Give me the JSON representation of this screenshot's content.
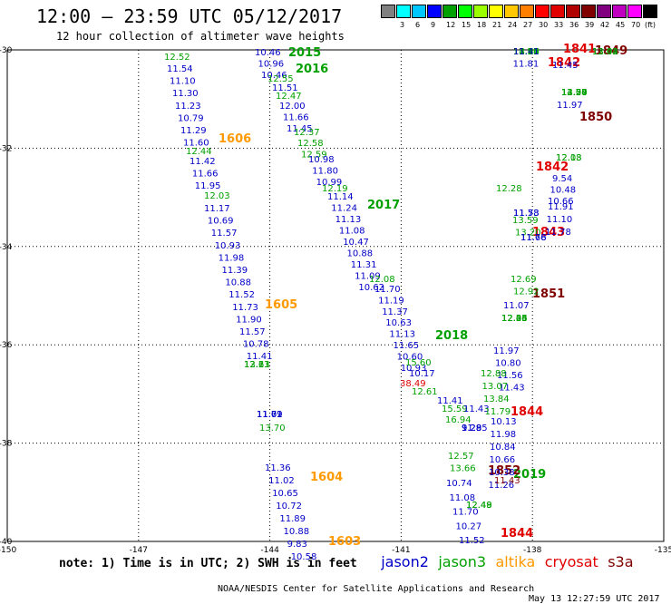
{
  "title": "12:00 – 23:59 UTC 05/12/2017",
  "subtitle": "12 hour collection of altimeter wave heights",
  "colorbar": {
    "unit": "(ft)",
    "colors": [
      "#808080",
      "#00ffff",
      "#00c8ff",
      "#0000ff",
      "#00a000",
      "#00ff00",
      "#9cff00",
      "#ffff00",
      "#ffc800",
      "#ff8000",
      "#ff0000",
      "#e00000",
      "#b00000",
      "#800000",
      "#800080",
      "#c000c0",
      "#ff00ff",
      "#000000"
    ],
    "labels": [
      "3",
      "6",
      "9",
      "12",
      "15",
      "18",
      "21",
      "24",
      "27",
      "30",
      "33",
      "36",
      "39",
      "42",
      "45",
      "70"
    ]
  },
  "map": {
    "lat_labels": [
      "-30",
      "-32",
      "-34",
      "-36",
      "-38",
      "-40"
    ],
    "lon_labels": [
      "-150",
      "-147",
      "-144",
      "-141",
      "-138",
      "-135"
    ]
  },
  "satellites": [
    {
      "name": "jason2",
      "color": "#0000c8"
    },
    {
      "name": "jason3",
      "color": "#00a000"
    },
    {
      "name": "altika",
      "color": "#ff9900"
    },
    {
      "name": "cryosat",
      "color": "#e00000"
    },
    {
      "name": "s3a",
      "color": "#800000"
    }
  ],
  "legend": {
    "note": "note: 1) Time is in UTC; 2) SWH is in feet"
  },
  "footer": {
    "credit": "NOAA/NESDIS Center for Satellite Applications and Research",
    "stamp": "May 13 12:27:59 UTC 2017"
  },
  "track_labels": [
    {
      "text": "2015",
      "sat": "jason3"
    },
    {
      "text": "2016",
      "sat": "jason3"
    },
    {
      "text": "2017",
      "sat": "jason3"
    },
    {
      "text": "2018",
      "sat": "jason3"
    },
    {
      "text": "2019",
      "sat": "jason3"
    },
    {
      "text": "1606",
      "sat": "altika"
    },
    {
      "text": "1605",
      "sat": "altika"
    },
    {
      "text": "1604",
      "sat": "altika"
    },
    {
      "text": "1603",
      "sat": "altika"
    },
    {
      "text": "1841",
      "sat": "cryosat"
    },
    {
      "text": "1842",
      "sat": "cryosat"
    },
    {
      "text": "1842",
      "sat": "cryosat"
    },
    {
      "text": "1843",
      "sat": "cryosat"
    },
    {
      "text": "1844",
      "sat": "cryosat"
    },
    {
      "text": "1844",
      "sat": "cryosat"
    },
    {
      "text": "1849",
      "sat": "s3a"
    },
    {
      "text": "1850",
      "sat": "s3a"
    },
    {
      "text": "1851",
      "sat": "s3a"
    },
    {
      "text": "1852",
      "sat": "s3a"
    }
  ],
  "tracks": [
    {
      "sat": "jason3",
      "values": [
        "12.52"
      ]
    },
    {
      "sat": "jason2",
      "values": [
        "11.54",
        "11.10",
        "11.30",
        "11.23",
        "10.79",
        "11.29",
        "11.60"
      ]
    },
    {
      "sat": "jason3",
      "values": [
        "12.44"
      ]
    },
    {
      "sat": "jason2",
      "values": [
        "11.42",
        "11.66",
        "11.95"
      ]
    },
    {
      "sat": "jason3",
      "values": [
        "12.03"
      ]
    },
    {
      "sat": "jason2",
      "values": [
        "11.17",
        "10.69",
        "11.57",
        "10.93",
        "11.98",
        "11.39",
        "10.88",
        "11.52",
        "11.73",
        "11.90",
        "11.57",
        "10.78",
        "11.41"
      ]
    },
    {
      "sat": "jason3",
      "values": [
        "12.21",
        "12.63",
        "13.13"
      ]
    },
    {
      "sat": "jason2",
      "values": [
        "11.69",
        "11.72",
        "11.01"
      ]
    },
    {
      "sat": "jason3",
      "values": [
        "13.70"
      ]
    },
    {
      "sat": "jason2",
      "values": [
        "11.36",
        "11.02",
        "10.65",
        "10.72",
        "11.89",
        "10.88",
        "9.83",
        "10.58"
      ]
    },
    {
      "sat": "jason2",
      "values": [
        "10.46",
        "10.96",
        "10.46"
      ]
    },
    {
      "sat": "jason3",
      "values": [
        "12.55"
      ]
    },
    {
      "sat": "jason2",
      "values": [
        "11.51"
      ]
    },
    {
      "sat": "jason3",
      "values": [
        "12.47"
      ]
    },
    {
      "sat": "jason2",
      "values": [
        "12.00",
        "11.66",
        "11.45"
      ]
    },
    {
      "sat": "jason3",
      "values": [
        "12.37",
        "12.58",
        "12.59"
      ]
    },
    {
      "sat": "jason2",
      "values": [
        "10.98",
        "11.80",
        "10.99"
      ]
    },
    {
      "sat": "jason3",
      "values": [
        "12.19"
      ]
    },
    {
      "sat": "jason2",
      "values": [
        "11.14",
        "11.24",
        "11.13",
        "11.08",
        "10.47",
        "10.88",
        "11.31",
        "11.09",
        "10.62"
      ]
    },
    {
      "sat": "jason3",
      "values": [
        "12.08"
      ]
    },
    {
      "sat": "jason2",
      "values": [
        "11.70",
        "11.19",
        "11.37",
        "10.63",
        "11.13",
        "11.65",
        "10.60",
        "10.93"
      ]
    },
    {
      "sat": "jason3",
      "values": [
        "15.60"
      ]
    },
    {
      "sat": "jason2",
      "values": [
        "10.17"
      ]
    },
    {
      "sat": "cryosat",
      "values": [
        "38.49"
      ]
    },
    {
      "sat": "jason3",
      "values": [
        "12.61"
      ]
    },
    {
      "sat": "jason2",
      "values": [
        "11.41"
      ]
    },
    {
      "sat": "jason3",
      "values": [
        "15.59"
      ]
    },
    {
      "sat": "jason2",
      "values": [
        "11.43"
      ]
    },
    {
      "sat": "jason3",
      "values": [
        "16.94"
      ]
    },
    {
      "sat": "jason2",
      "values": [
        "9.29",
        "9.28",
        "11.85"
      ]
    },
    {
      "sat": "jason3",
      "values": [
        "12.57",
        "13.66"
      ]
    },
    {
      "sat": "jason2",
      "values": [
        "10.74",
        "11.08",
        "11.70",
        "10.27",
        "11.52"
      ]
    },
    {
      "sat": "jason3",
      "values": [
        "12.49",
        "12.48"
      ]
    },
    {
      "sat": "jason3",
      "values": [
        "14.17",
        "13.32",
        "12.67",
        "13.24",
        "13.46",
        "13.73",
        "13.66",
        "13.70",
        "14.56",
        "13.56",
        "12.80",
        "12.94",
        "13.54"
      ]
    },
    {
      "sat": "jason2",
      "values": [
        "11.41",
        "11.81"
      ]
    },
    {
      "sat": "jason3",
      "values": [
        "12.28"
      ]
    },
    {
      "sat": "jason2",
      "values": [
        "11.78",
        "11.53"
      ]
    },
    {
      "sat": "jason3",
      "values": [
        "13.59",
        "13.20"
      ]
    },
    {
      "sat": "jason2",
      "values": [
        "11.76",
        "11.68"
      ]
    },
    {
      "sat": "jason3",
      "values": [
        "12.69",
        "12.92"
      ]
    },
    {
      "sat": "jason2",
      "values": [
        "11.07"
      ]
    },
    {
      "sat": "jason3",
      "values": [
        "12.45",
        "12.26",
        "12.03",
        "12.34"
      ]
    },
    {
      "sat": "jason2",
      "values": [
        "11.97",
        "10.80",
        "11.56",
        "11.43"
      ]
    },
    {
      "sat": "jason3",
      "values": [
        "12.88",
        "13.07",
        "13.84",
        "11.79"
      ]
    },
    {
      "sat": "jason2",
      "values": [
        "10.13",
        "11.98",
        "10.84",
        "10.66",
        "10.38",
        "11.26"
      ]
    },
    {
      "sat": "s3a",
      "values": [
        "11.43"
      ]
    },
    {
      "sat": "jason3",
      "values": [
        "13.42",
        "12.04",
        "13.03"
      ]
    },
    {
      "sat": "jason2",
      "values": [
        "11.45"
      ]
    },
    {
      "sat": "jason3",
      "values": [
        "14.57",
        "14.20",
        "13.08",
        "12.50",
        "12.74"
      ]
    },
    {
      "sat": "jason2",
      "values": [
        "11.97"
      ]
    },
    {
      "sat": "jason3",
      "values": [
        "12.18",
        "12.03"
      ]
    },
    {
      "sat": "jason2",
      "values": [
        "9.54",
        "10.48",
        "10.66"
      ]
    },
    {
      "sat": "jason2",
      "values": [
        "11.91",
        "11.10",
        "11.78"
      ]
    }
  ]
}
